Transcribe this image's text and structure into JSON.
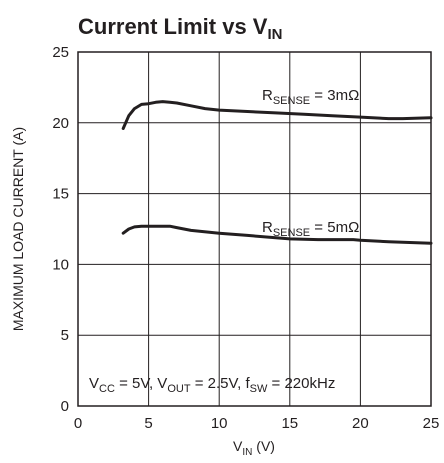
{
  "chart_data": {
    "type": "line",
    "title": {
      "main": "Current Limit vs V",
      "sub": "IN"
    },
    "xlabel": {
      "main": "V",
      "sub": "IN",
      "suffix": " (V)"
    },
    "ylabel": "MAXIMUM LOAD CURRENT (A)",
    "xlim": [
      0,
      25
    ],
    "ylim": [
      0,
      25
    ],
    "xticks": [
      "0",
      "5",
      "10",
      "15",
      "20",
      "25"
    ],
    "yticks": [
      "0",
      "5",
      "10",
      "15",
      "20",
      "25"
    ],
    "grid": true,
    "series": [
      {
        "label": {
          "main": "R",
          "sub": "SENSE",
          "suffix": " = 3mΩ"
        },
        "x": [
          3.2,
          3.6,
          4.0,
          4.5,
          5.0,
          5.5,
          6.0,
          6.5,
          7,
          8,
          9,
          10,
          12,
          14,
          16,
          18,
          20,
          22,
          23,
          25
        ],
        "y": [
          19.6,
          20.5,
          21.0,
          21.3,
          21.35,
          21.45,
          21.5,
          21.45,
          21.4,
          21.2,
          21.0,
          20.9,
          20.8,
          20.7,
          20.6,
          20.5,
          20.4,
          20.3,
          20.3,
          20.35
        ]
      },
      {
        "label": {
          "main": "R",
          "sub": "SENSE",
          "suffix": " = 5mΩ"
        },
        "x": [
          3.2,
          3.6,
          4.0,
          4.5,
          5.0,
          5.5,
          6.0,
          6.5,
          7,
          8,
          10,
          12,
          15,
          17,
          19.5,
          20,
          22,
          25
        ],
        "y": [
          12.2,
          12.5,
          12.65,
          12.7,
          12.7,
          12.7,
          12.7,
          12.7,
          12.6,
          12.4,
          12.2,
          12.05,
          11.8,
          11.75,
          11.75,
          11.7,
          11.6,
          11.5
        ]
      }
    ],
    "annotation": {
      "parts": [
        {
          "t": "V",
          "sub": "CC"
        },
        {
          "t": " = 5V, V",
          "sub": "OUT"
        },
        {
          "t": " = 2.5V, f",
          "sub": "SW"
        },
        {
          "t": " = 220kHz"
        }
      ]
    }
  }
}
